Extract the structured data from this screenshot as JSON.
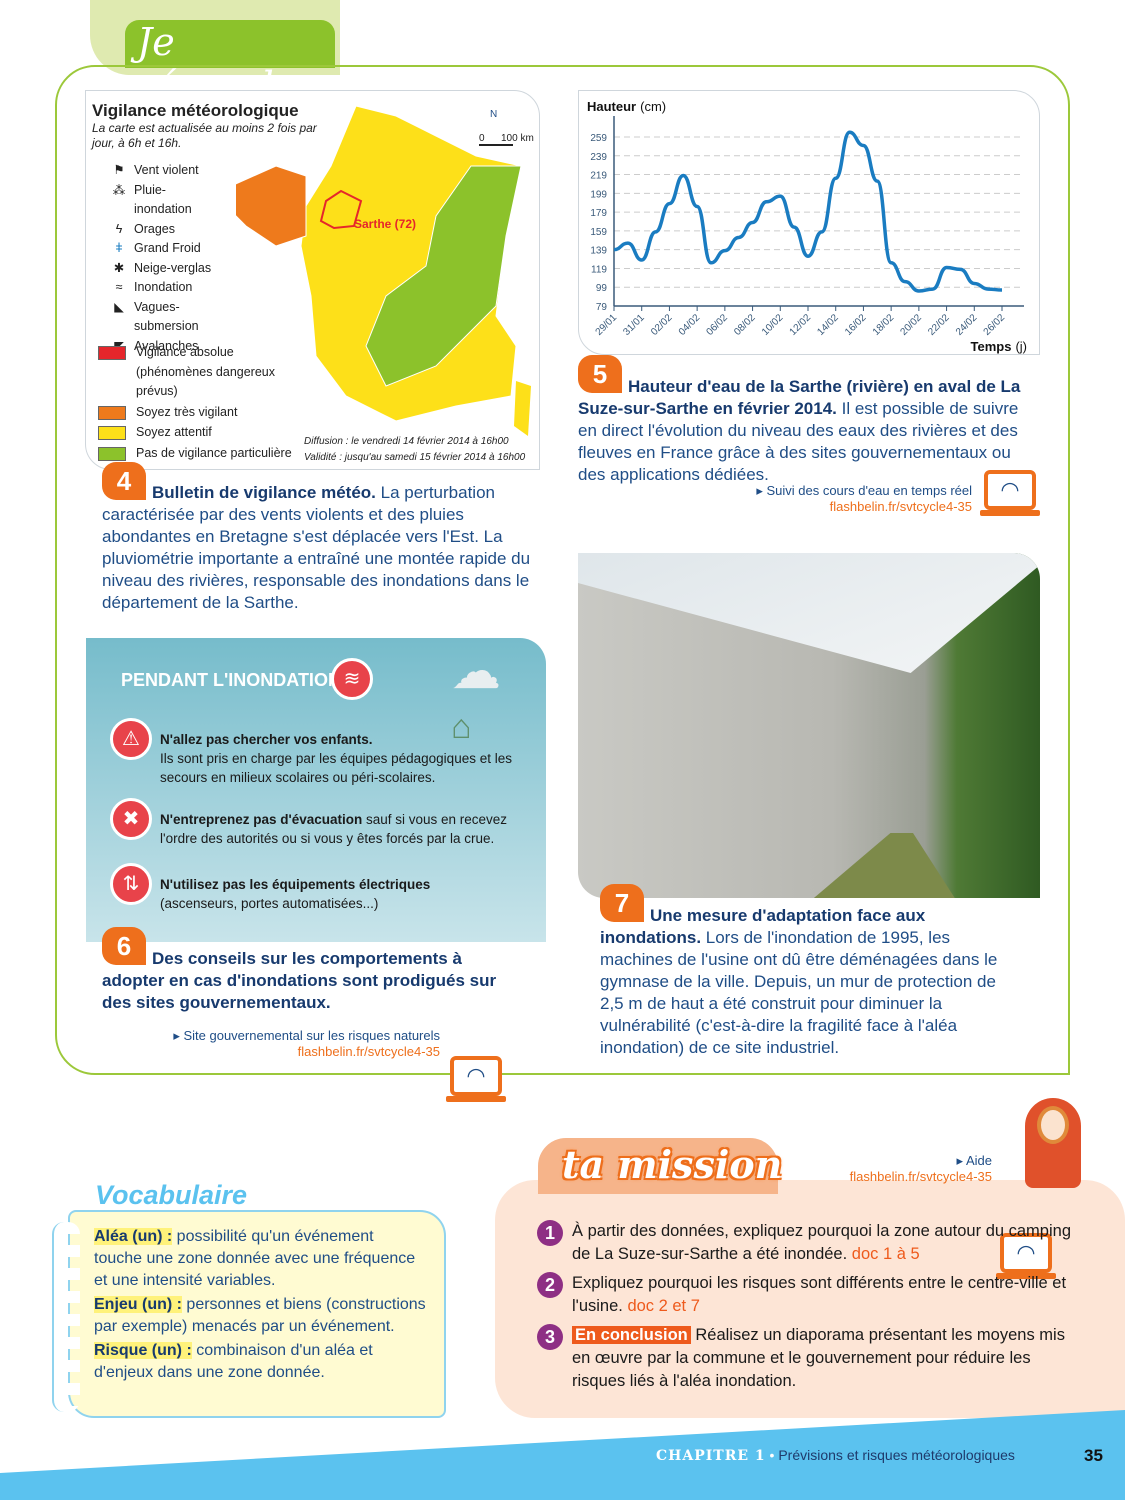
{
  "header": {
    "title": "Je réponds"
  },
  "doc4": {
    "map_title": "Vigilance météorologique",
    "map_subtitle": "La carte est actualisée au moins 2 fois par jour, à 6h et 16h.",
    "north": "N",
    "scale_0": "0",
    "scale_100": "100 km",
    "sarthe_label": "Sarthe (72)",
    "phenomena": [
      {
        "icon": "windsock-icon",
        "label": "Vent violent"
      },
      {
        "icon": "rain-flood-icon",
        "label": "Pluie-inondation"
      },
      {
        "icon": "lightning-icon",
        "label": "Orages"
      },
      {
        "icon": "thermometer-icon",
        "label": "Grand Froid"
      },
      {
        "icon": "snowflake-icon",
        "label": "Neige-verglas"
      },
      {
        "icon": "waves-icon",
        "label": "Inondation"
      },
      {
        "icon": "wave-submersion-icon",
        "label": "Vagues-submersion"
      },
      {
        "icon": "avalanche-icon",
        "label": "Avalanches"
      }
    ],
    "levels": [
      {
        "color": "#e5262b",
        "label": "Vigilance absolue (phénomènes dangereux prévus)"
      },
      {
        "color": "#ee7a1c",
        "label": "Soyez très vigilant"
      },
      {
        "color": "#fde019",
        "label": "Soyez attentif"
      },
      {
        "color": "#8cc22b",
        "label": "Pas de vigilance particulière"
      }
    ],
    "diffusion": "Diffusion : le vendredi 14 février 2014 à 16h00",
    "validite": "Validité : jusqu'au samedi 15 février 2014 à 16h00",
    "number": "4",
    "caption_bold": "Bulletin de vigilance météo.",
    "caption": " La perturbation caractérisée par des vents violents et des pluies abondantes en Bretagne s'est déplacée vers l'Est. La pluviométrie importante a entraîné une montée rapide du niveau des rivières, responsable des inondations dans le département de la Sarthe."
  },
  "doc5": {
    "number": "5",
    "caption_bold": "Hauteur d'eau de la Sarthe (rivière) en aval de La Suze-sur-Sarthe en février 2014.",
    "caption": " Il est possible de suivre en direct l'évolution du niveau des eaux des rivières et des fleuves en France grâce à des sites gouvernementaux ou des applications dédiées.",
    "link_label": "Suivi des cours d'eau en temps réel",
    "link_url": "flashbelin.fr/svtcycle4-35"
  },
  "chart_data": {
    "type": "line",
    "ylabel_bold": "Hauteur",
    "ylabel_unit": "(cm)",
    "xlabel_bold": "Temps",
    "xlabel_unit": "(j)",
    "yticks": [
      79,
      99,
      119,
      139,
      159,
      179,
      199,
      219,
      239,
      259
    ],
    "ylim": [
      79,
      270
    ],
    "xtick_labels": [
      "29/01",
      "31/01",
      "02/02",
      "04/02",
      "06/02",
      "08/02",
      "10/02",
      "12/02",
      "14/02",
      "16/02",
      "18/02",
      "20/02",
      "22/02",
      "24/02",
      "26/02"
    ],
    "x": [
      "29/01",
      "30/01",
      "31/01",
      "01/02",
      "02/02",
      "03/02",
      "04/02",
      "05/02",
      "06/02",
      "07/02",
      "08/02",
      "09/02",
      "10/02",
      "11/02",
      "12/02",
      "13/02",
      "14/02",
      "15/02",
      "16/02",
      "17/02",
      "18/02",
      "19/02",
      "20/02",
      "21/02",
      "22/02",
      "23/02",
      "24/02",
      "25/02",
      "26/02"
    ],
    "values": [
      139,
      146,
      128,
      158,
      188,
      218,
      185,
      125,
      138,
      152,
      168,
      190,
      196,
      163,
      132,
      158,
      215,
      264,
      250,
      212,
      125,
      105,
      95,
      97,
      120,
      118,
      103,
      97,
      96
    ],
    "grid": "horizontal dashed",
    "color": "#1a7cc1"
  },
  "doc6": {
    "box_title": "PENDANT L'INONDATION",
    "rules": [
      {
        "icon": "no-fetch-children-icon",
        "bold": "N'allez pas chercher vos enfants.",
        "text": "Ils sont pris en charge par les équipes pédagogiques et les secours en milieux scolaires ou péri-scolaires."
      },
      {
        "icon": "no-evacuation-icon",
        "bold": "N'entreprenez pas d'évacuation",
        "text": " sauf si vous en recevez l'ordre des autorités ou si vous y êtes forcés par la crue."
      },
      {
        "icon": "no-elevator-icon",
        "bold": "N'utilisez pas les équipements électriques",
        "text": "(ascenseurs, portes automatisées...)"
      }
    ],
    "number": "6",
    "caption_bold": "Des conseils sur les comportements à adopter en cas d'inondations sont prodigués sur des sites gouvernementaux.",
    "link_label": "Site gouvernemental sur les risques naturels",
    "link_url": "flashbelin.fr/svtcycle4-35"
  },
  "doc7": {
    "number": "7",
    "caption_bold": "Une mesure d'adaptation face aux inondations.",
    "caption": " Lors de l'inondation de 1995, les machines de l'usine ont dû être déménagées dans le gymnase de la ville. Depuis, un mur de protection de 2,5 m de haut a été construit pour diminuer la vulnérabilité (c'est-à-dire la fragilité face à l'aléa inondation) de ce site industriel."
  },
  "vocab": {
    "title": "Vocabulaire",
    "items": [
      {
        "term": "Aléa (un) :",
        "def": " possibilité qu'un événement touche une zone donnée avec une fréquence et une intensité variables."
      },
      {
        "term": "Enjeu (un) :",
        "def": " personnes et biens (constructions par exemple) menacés par un événement."
      },
      {
        "term": "Risque (un) :",
        "def": " combinaison d'un aléa et d'enjeux dans une zone donnée."
      }
    ]
  },
  "mission": {
    "title": "ta mission",
    "help_label": "Aide",
    "help_url": "flashbelin.fr/svtcycle4-35",
    "items": [
      {
        "n": "1",
        "text": "À partir des données, expliquez pourquoi la zone autour du camping de La Suze-sur-Sarthe a été inondée. ",
        "doc": "doc 1 à 5"
      },
      {
        "n": "2",
        "text": "Expliquez pourquoi les risques sont différents entre le centre-ville et l'usine. ",
        "doc": "doc 2 et 7"
      },
      {
        "n": "3",
        "tag": "En conclusion",
        "text": " Réalisez un diaporama présentant les moyens mis en œuvre par la commune et le gouvernement pour réduire les risques liés à l'aléa inondation."
      }
    ]
  },
  "footer": {
    "chapter": "CHAPITRE 1",
    "sep": "•",
    "title": "Prévisions et risques météorologiques",
    "page": "35"
  }
}
